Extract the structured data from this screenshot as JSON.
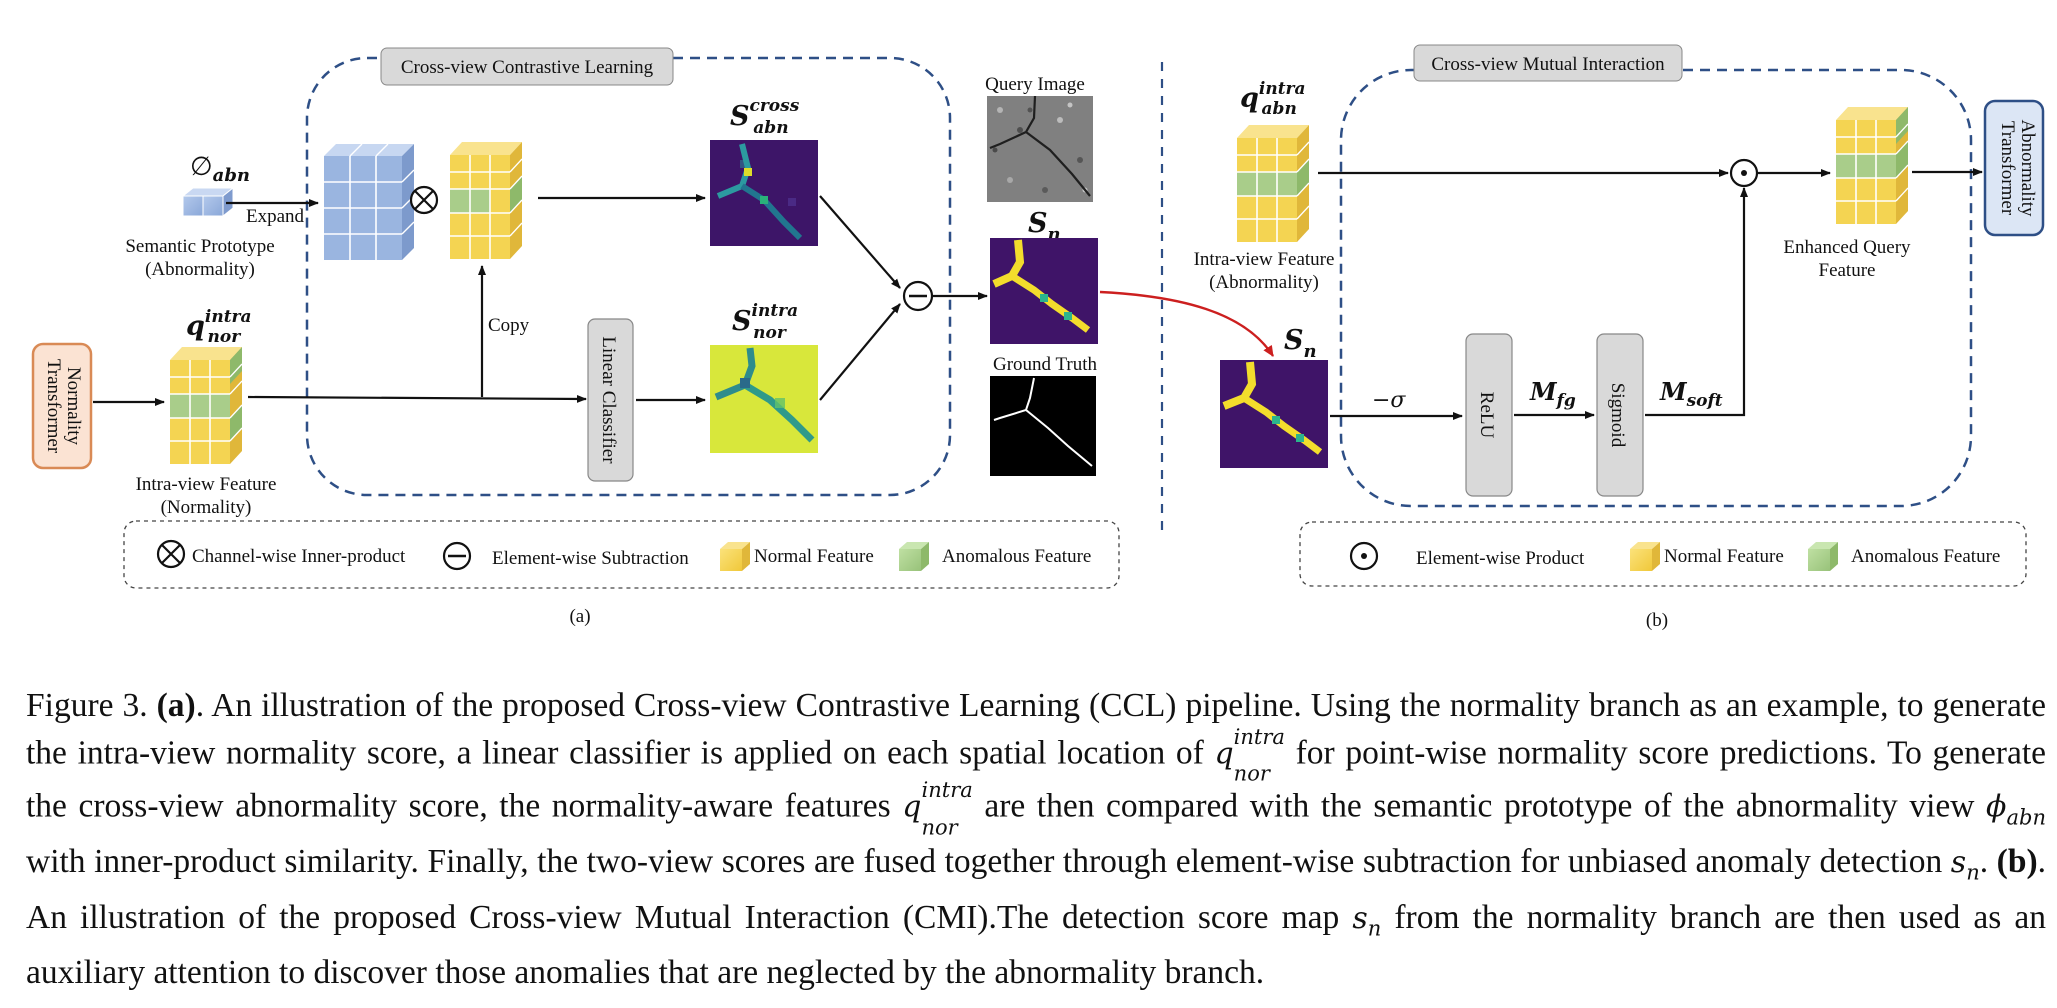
{
  "panel_a": {
    "ccl_title": "Cross-view Contrastive Learning",
    "phi_symbol": "∅",
    "phi_sub": "abn",
    "expand_label": "Expand",
    "semantic_prototype_line1": "Semantic Prototype",
    "semantic_prototype_line2": "(Abnormality)",
    "q_symbol": "q",
    "q_sup": "intra",
    "q_sub": "nor",
    "intra_feature_line1": "Intra-view Feature",
    "intra_feature_line2": "(Normality)",
    "normality_transformer_line1": "Normality",
    "normality_transformer_line2": "Transformer",
    "copy_label": "Copy",
    "linear_classifier": "Linear Classifier",
    "s_cross_symbol": "S",
    "s_cross_sup": "cross",
    "s_cross_sub": "abn",
    "s_intra_symbol": "S",
    "s_intra_sup": "intra",
    "s_intra_sub": "nor",
    "query_image": "Query Image",
    "sn_symbol": "S",
    "sn_sub": "n",
    "ground_truth": "Ground Truth",
    "legend": {
      "inner_product": "Channel-wise Inner-product",
      "subtraction": "Element-wise Subtraction",
      "normal_feature": "Normal Feature",
      "anomalous_feature": "Anomalous Feature"
    },
    "panel_label": "(a)"
  },
  "panel_b": {
    "cmi_title": "Cross-view Mutual Interaction",
    "q_symbol": "q",
    "q_sup": "intra",
    "q_sub": "abn",
    "intra_feature_line1": "Intra-view Feature",
    "intra_feature_line2": "(Abnormality)",
    "sn_symbol": "S",
    "sn_sub": "n",
    "neg_sigma": "−σ",
    "relu": "ReLU",
    "m_fg_symbol": "M",
    "m_fg_sub": "fg",
    "sigmoid": "Sigmoid",
    "m_soft_symbol": "M",
    "m_soft_sub": "soft",
    "enhanced_line1": "Enhanced Query",
    "enhanced_line2": "Feature",
    "abnormality_transformer_line1": "Abnormality",
    "abnormality_transformer_line2": "Transformer",
    "legend": {
      "product": "Element-wise Product",
      "normal_feature": "Normal Feature",
      "anomalous_feature": "Anomalous Feature"
    },
    "panel_label": "(b)"
  },
  "caption": {
    "fig_label": "Figure 3.",
    "part_a": "(a)",
    "seg1": ". An illustration of the proposed Cross-view Contrastive Learning (CCL) pipeline. Using the normality branch as an example, to generate the intra-view normality score, a linear classifier is applied on each spatial location of ",
    "q": "q",
    "q_sup": "intra",
    "q_sub": "nor",
    "seg2": " for point-wise normality score predictions. To generate the cross-view abnormality score, the normality-aware features ",
    "seg3": " are then compared with the semantic prototype of the abnormality view ",
    "phi": "ϕ",
    "phi_sub": "abn",
    "seg4": " with inner-product similarity. Finally, the two-view scores are fused together through element-wise subtraction for unbiased anomaly detection ",
    "s": "s",
    "s_sub": "n",
    "seg5": ". ",
    "part_b": "(b)",
    "seg6": ". An illustration of the proposed Cross-view Mutual Interaction (CMI).The detection score map ",
    "seg7": " from the normality branch are then used as an auxiliary attention to discover those anomalies that are neglected by the abnormality branch."
  },
  "colors": {
    "normal_feature": "#f4d452",
    "anomalous_feature": "#a9cd8a",
    "prototype": "#9ab5e0",
    "dashed_border": "#2e4f86",
    "heatmap_bg": "#3f1468",
    "heatmap_crack": "#f3dd2c",
    "intra_bg": "#dde83a",
    "arrow_red": "#cc1f1f"
  }
}
